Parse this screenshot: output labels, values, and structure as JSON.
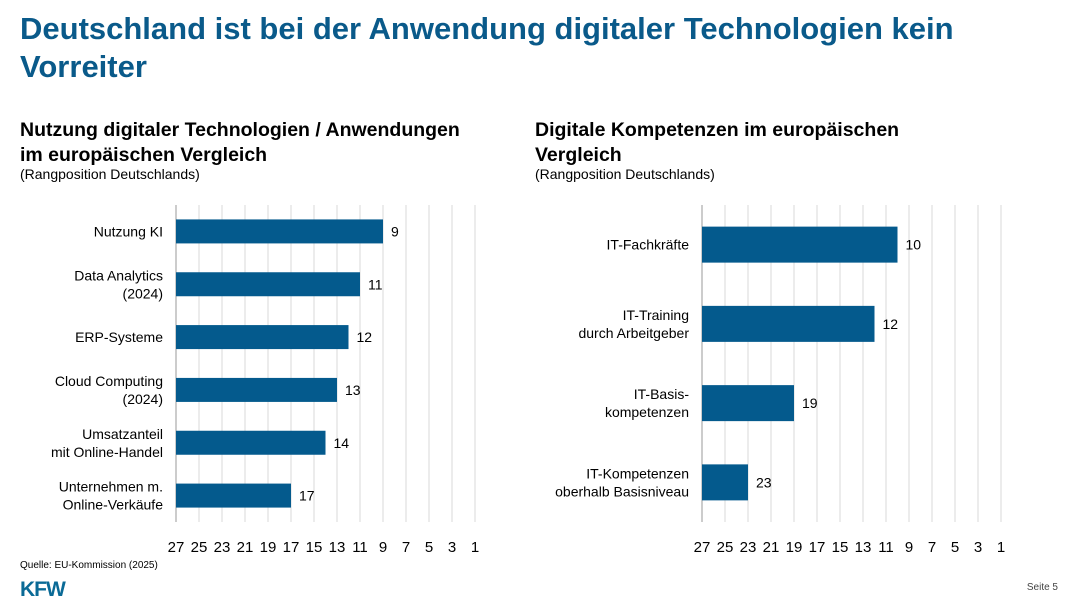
{
  "title": "Deutschland ist bei der Anwendung digitaler Technologien kein Vorreiter",
  "source": "Quelle: EU-Kommission (2025)",
  "logo": "KFW",
  "page_label": "Seite 5",
  "colors": {
    "bar": "#045a8d",
    "title": "#0a5a8a",
    "grid": "#d9d9d9"
  },
  "chart_data": [
    {
      "type": "bar",
      "orientation": "horizontal",
      "title": "Nutzung digitaler Technologien / Anwendungen im europäischen Vergleich",
      "subtitle": "(Rangposition Deutschlands)",
      "categories": [
        [
          "Nutzung KI"
        ],
        [
          "Data Analytics",
          "(2024)"
        ],
        [
          "ERP-Systeme"
        ],
        [
          "Cloud Computing",
          "(2024)"
        ],
        [
          "Umsatzanteil",
          "mit Online-Handel"
        ],
        [
          "Unternehmen m.",
          "Online-Verkäufe"
        ]
      ],
      "values": [
        9,
        11,
        12,
        13,
        14,
        17
      ],
      "xlim": [
        27,
        1
      ],
      "x_reversed": true,
      "xticks": [
        27,
        25,
        23,
        21,
        19,
        17,
        15,
        13,
        11,
        9,
        7,
        5,
        3,
        1
      ],
      "grid": true
    },
    {
      "type": "bar",
      "orientation": "horizontal",
      "title": "Digitale Kompetenzen im europäischen Vergleich",
      "subtitle": "(Rangposition Deutschlands)",
      "categories": [
        [
          "IT-Fachkräfte"
        ],
        [
          "IT-Training",
          "durch Arbeitgeber"
        ],
        [
          "IT-Basis-",
          "kompetenzen"
        ],
        [
          "IT-Kompetenzen",
          "oberhalb Basisniveau"
        ]
      ],
      "values": [
        10,
        12,
        19,
        23
      ],
      "xlim": [
        27,
        1
      ],
      "x_reversed": true,
      "xticks": [
        27,
        25,
        23,
        21,
        19,
        17,
        15,
        13,
        11,
        9,
        7,
        5,
        3,
        1
      ],
      "grid": true
    }
  ]
}
